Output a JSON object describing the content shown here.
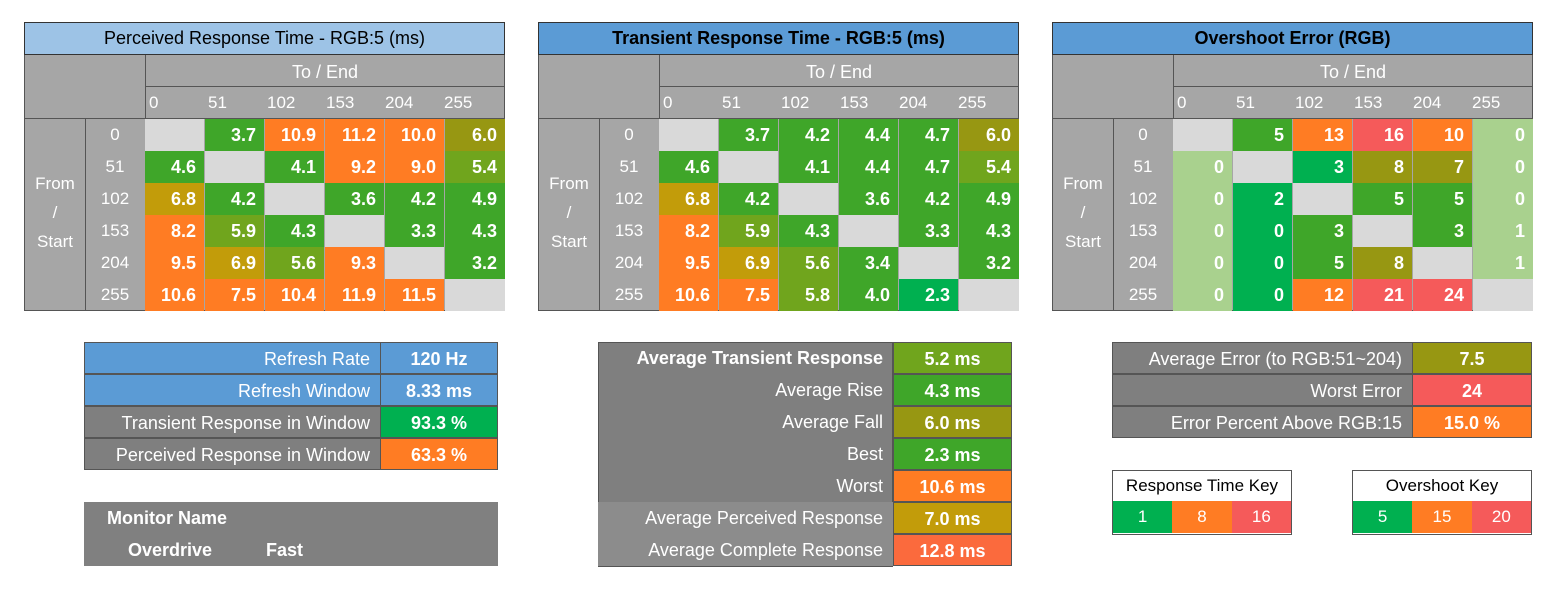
{
  "palette": {
    "gray": "#d9d9d9",
    "green": "#00b050",
    "lgreen": "#3fa629",
    "olive": "#70a51d",
    "mustard": "#979712",
    "gold": "#c29c0a",
    "orange": "#ff7c23",
    "red": "#f55a5a",
    "pale": "#a9d18e",
    "blue": "#5b9bd5"
  },
  "tables": [
    {
      "title": "Perceived Response Time - RGB:5 (ms)",
      "header": "To / End",
      "from_label": [
        "From",
        "/",
        "Start"
      ],
      "levels": [
        "0",
        "51",
        "102",
        "153",
        "204",
        "255"
      ],
      "rows": [
        [
          null,
          "3.7",
          "10.9",
          "11.2",
          "10.0",
          "6.0"
        ],
        [
          "4.6",
          null,
          "4.1",
          "9.2",
          "9.0",
          "5.4"
        ],
        [
          "6.8",
          "4.2",
          null,
          "3.6",
          "4.2",
          "4.9"
        ],
        [
          "8.2",
          "5.9",
          "4.3",
          null,
          "3.3",
          "4.3"
        ],
        [
          "9.5",
          "6.9",
          "5.6",
          "9.3",
          null,
          "3.2"
        ],
        [
          "10.6",
          "7.5",
          "10.4",
          "11.9",
          "11.5",
          null
        ]
      ],
      "colors": [
        [
          "gray",
          "lgreen",
          "orange",
          "orange",
          "orange",
          "mustard"
        ],
        [
          "lgreen",
          "gray",
          "lgreen",
          "orange",
          "orange",
          "olive"
        ],
        [
          "gold",
          "lgreen",
          "gray",
          "lgreen",
          "lgreen",
          "lgreen"
        ],
        [
          "orange",
          "olive",
          "lgreen",
          "gray",
          "lgreen",
          "lgreen"
        ],
        [
          "orange",
          "gold",
          "olive",
          "orange",
          "gray",
          "lgreen"
        ],
        [
          "orange",
          "orange",
          "orange",
          "orange",
          "orange",
          "gray"
        ]
      ]
    },
    {
      "title": "Transient Response Time - RGB:5 (ms)",
      "header": "To / End",
      "from_label": [
        "From",
        "/",
        "Start"
      ],
      "levels": [
        "0",
        "51",
        "102",
        "153",
        "204",
        "255"
      ],
      "rows": [
        [
          null,
          "3.7",
          "4.2",
          "4.4",
          "4.7",
          "6.0"
        ],
        [
          "4.6",
          null,
          "4.1",
          "4.4",
          "4.7",
          "5.4"
        ],
        [
          "6.8",
          "4.2",
          null,
          "3.6",
          "4.2",
          "4.9"
        ],
        [
          "8.2",
          "5.9",
          "4.3",
          null,
          "3.3",
          "4.3"
        ],
        [
          "9.5",
          "6.9",
          "5.6",
          "3.4",
          null,
          "3.2"
        ],
        [
          "10.6",
          "7.5",
          "5.8",
          "4.0",
          "2.3",
          null
        ]
      ],
      "colors": [
        [
          "gray",
          "lgreen",
          "lgreen",
          "lgreen",
          "lgreen",
          "mustard"
        ],
        [
          "lgreen",
          "gray",
          "lgreen",
          "lgreen",
          "lgreen",
          "olive"
        ],
        [
          "gold",
          "lgreen",
          "gray",
          "lgreen",
          "lgreen",
          "lgreen"
        ],
        [
          "orange",
          "olive",
          "lgreen",
          "gray",
          "lgreen",
          "lgreen"
        ],
        [
          "orange",
          "gold",
          "olive",
          "lgreen",
          "gray",
          "lgreen"
        ],
        [
          "orange",
          "orange",
          "olive",
          "lgreen",
          "green",
          "gray"
        ]
      ]
    },
    {
      "title": "Overshoot Error (RGB)",
      "header": "To / End",
      "from_label": [
        "From",
        "/",
        "Start"
      ],
      "levels": [
        "0",
        "51",
        "102",
        "153",
        "204",
        "255"
      ],
      "rows": [
        [
          null,
          "5",
          "13",
          "16",
          "10",
          "0"
        ],
        [
          "0",
          null,
          "3",
          "8",
          "7",
          "0"
        ],
        [
          "0",
          "2",
          null,
          "5",
          "5",
          "0"
        ],
        [
          "0",
          "0",
          "3",
          null,
          "3",
          "1"
        ],
        [
          "0",
          "0",
          "5",
          "8",
          null,
          "1"
        ],
        [
          "0",
          "0",
          "12",
          "21",
          "24",
          null
        ]
      ],
      "colors": [
        [
          "gray",
          "lgreen",
          "orange",
          "red",
          "orange",
          "pale"
        ],
        [
          "pale",
          "gray",
          "green",
          "mustard",
          "mustard",
          "pale"
        ],
        [
          "pale",
          "green",
          "gray",
          "lgreen",
          "lgreen",
          "pale"
        ],
        [
          "pale",
          "green",
          "lgreen",
          "gray",
          "lgreen",
          "pale"
        ],
        [
          "pale",
          "green",
          "lgreen",
          "mustard",
          "gray",
          "pale"
        ],
        [
          "pale",
          "green",
          "orange",
          "red",
          "red",
          "gray"
        ]
      ]
    }
  ],
  "refresh": [
    {
      "label": "Refresh Rate",
      "value": "120 Hz",
      "lbg": "blue",
      "vbg": "blue"
    },
    {
      "label": "Refresh Window",
      "value": "8.33 ms",
      "lbg": "blue",
      "vbg": "blue"
    },
    {
      "label": "Transient Response in Window",
      "value": "93.3 %",
      "lbg": "dgray",
      "vbg": "green"
    },
    {
      "label": "Perceived Response in Window",
      "value": "63.3 %",
      "lbg": "dgray",
      "vbg": "orange"
    }
  ],
  "monitor": {
    "name_label": "Monitor Name",
    "overdrive_label": "Overdrive",
    "overdrive_value": "Fast"
  },
  "averages": [
    {
      "label": "Average Transient Response",
      "value": "5.2 ms",
      "bold": true,
      "vbg": "olive"
    },
    {
      "label": "Average Rise",
      "value": "4.3 ms",
      "vbg": "lgreen"
    },
    {
      "label": "Average Fall",
      "value": "6.0 ms",
      "vbg": "mustard"
    },
    {
      "label": "Best",
      "value": "2.3 ms",
      "vbg": "lgreen"
    },
    {
      "label": "Worst",
      "value": "10.6 ms",
      "vbg": "orange"
    },
    {
      "label": "Average Perceived Response",
      "value": "7.0 ms",
      "vbg": "gold",
      "lbg": "mgray"
    },
    {
      "label": "Average Complete Response",
      "value": "12.8 ms",
      "vbg": "orangered",
      "lbg": "mgray"
    }
  ],
  "errors": [
    {
      "label": "Average Error (to RGB:51~204)",
      "value": "7.5",
      "vbg": "mustard"
    },
    {
      "label": "Worst Error",
      "value": "24",
      "vbg": "red"
    },
    {
      "label": "Error Percent Above RGB:15",
      "value": "15.0 %",
      "vbg": "orange"
    }
  ],
  "response_key": {
    "title": "Response Time Key",
    "values": [
      "1",
      "8",
      "16"
    ],
    "colors": [
      "green",
      "orange",
      "red"
    ]
  },
  "overshoot_key": {
    "title": "Overshoot Key",
    "values": [
      "5",
      "15",
      "20"
    ],
    "colors": [
      "green",
      "orange",
      "red"
    ]
  },
  "chart_data": [
    {
      "type": "heatmap",
      "title": "Perceived Response Time - RGB:5 (ms)",
      "xlabel": "To / End",
      "ylabel": "From / Start",
      "x": [
        0,
        51,
        102,
        153,
        204,
        255
      ],
      "y": [
        0,
        51,
        102,
        153,
        204,
        255
      ],
      "values": [
        [
          null,
          3.7,
          10.9,
          11.2,
          10.0,
          6.0
        ],
        [
          4.6,
          null,
          4.1,
          9.2,
          9.0,
          5.4
        ],
        [
          6.8,
          4.2,
          null,
          3.6,
          4.2,
          4.9
        ],
        [
          8.2,
          5.9,
          4.3,
          null,
          3.3,
          4.3
        ],
        [
          9.5,
          6.9,
          5.6,
          9.3,
          null,
          3.2
        ],
        [
          10.6,
          7.5,
          10.4,
          11.9,
          11.5,
          null
        ]
      ]
    },
    {
      "type": "heatmap",
      "title": "Transient Response Time - RGB:5 (ms)",
      "xlabel": "To / End",
      "ylabel": "From / Start",
      "x": [
        0,
        51,
        102,
        153,
        204,
        255
      ],
      "y": [
        0,
        51,
        102,
        153,
        204,
        255
      ],
      "values": [
        [
          null,
          3.7,
          4.2,
          4.4,
          4.7,
          6.0
        ],
        [
          4.6,
          null,
          4.1,
          4.4,
          4.7,
          5.4
        ],
        [
          6.8,
          4.2,
          null,
          3.6,
          4.2,
          4.9
        ],
        [
          8.2,
          5.9,
          4.3,
          null,
          3.3,
          4.3
        ],
        [
          9.5,
          6.9,
          5.6,
          3.4,
          null,
          3.2
        ],
        [
          10.6,
          7.5,
          5.8,
          4.0,
          2.3,
          null
        ]
      ]
    },
    {
      "type": "heatmap",
      "title": "Overshoot Error (RGB)",
      "xlabel": "To / End",
      "ylabel": "From / Start",
      "x": [
        0,
        51,
        102,
        153,
        204,
        255
      ],
      "y": [
        0,
        51,
        102,
        153,
        204,
        255
      ],
      "values": [
        [
          null,
          5,
          13,
          16,
          10,
          0
        ],
        [
          0,
          null,
          3,
          8,
          7,
          0
        ],
        [
          0,
          2,
          null,
          5,
          5,
          0
        ],
        [
          0,
          0,
          3,
          null,
          3,
          1
        ],
        [
          0,
          0,
          5,
          8,
          null,
          1
        ],
        [
          0,
          0,
          12,
          21,
          24,
          null
        ]
      ]
    }
  ]
}
